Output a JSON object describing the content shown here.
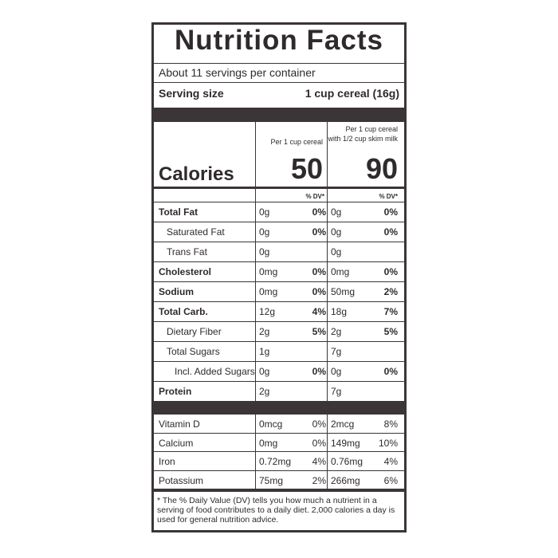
{
  "title": "Nutrition Facts",
  "servings": "About 11 servings per container",
  "serving_size": {
    "label": "Serving size",
    "value": "1 cup cereal (16g)"
  },
  "columns": [
    [
      "Per 1 cup cereal"
    ],
    [
      "Per 1 cup cereal",
      "with 1/2 cup skim milk"
    ]
  ],
  "calories": {
    "label": "Calories",
    "values": [
      "50",
      "90"
    ]
  },
  "dv_header": [
    "% DV*",
    "% DV*"
  ],
  "rows": [
    {
      "label": "Total Fat",
      "cells": [
        [
          "0g",
          "0%"
        ],
        [
          "0g",
          "0%"
        ]
      ]
    },
    {
      "label": "Saturated Fat",
      "cells": [
        [
          "0g",
          "0%"
        ],
        [
          "0g",
          "0%"
        ]
      ]
    },
    {
      "label": "Trans Fat",
      "cells": [
        [
          "0g"
        ],
        [
          "0g"
        ]
      ]
    },
    {
      "label": "Cholesterol",
      "cells": [
        [
          "0mg",
          "0%"
        ],
        [
          "0mg",
          "0%"
        ]
      ]
    },
    {
      "label": "Sodium",
      "cells": [
        [
          "0mg",
          "0%"
        ],
        [
          "50mg",
          "2%"
        ]
      ]
    },
    {
      "label": "Total Carb.",
      "cells": [
        [
          "12g",
          "4%"
        ],
        [
          "18g",
          "7%"
        ]
      ]
    },
    {
      "label": "Dietary Fiber",
      "cells": [
        [
          "2g",
          "5%"
        ],
        [
          "2g",
          "5%"
        ]
      ]
    },
    {
      "label": "Total Sugars",
      "cells": [
        [
          "1g"
        ],
        [
          "7g"
        ]
      ]
    },
    {
      "label": "Incl. Added Sugars",
      "cells": [
        [
          "0g",
          "0%"
        ],
        [
          "0g",
          "0%"
        ]
      ]
    },
    {
      "label": "Protein",
      "cells": [
        [
          "2g"
        ],
        [
          "7g"
        ]
      ]
    }
  ],
  "vitamins": [
    {
      "label": "Vitamin D",
      "cells": [
        [
          "0mcg",
          "0%"
        ],
        [
          "2mcg",
          "8%"
        ]
      ]
    },
    {
      "label": "Calcium",
      "cells": [
        [
          "0mg",
          "0%"
        ],
        [
          "149mg",
          "10%"
        ]
      ]
    },
    {
      "label": "Iron",
      "cells": [
        [
          "0.72mg",
          "4%"
        ],
        [
          "0.76mg",
          "4%"
        ]
      ]
    },
    {
      "label": "Potassium",
      "cells": [
        [
          "75mg",
          "2%"
        ],
        [
          "266mg",
          "6%"
        ]
      ]
    }
  ],
  "footnote": "* The % Daily Value (DV) tells you how much a nutrient in a serving of food contributes to a daily diet. 2,000 calories a day is used for general nutrition advice."
}
